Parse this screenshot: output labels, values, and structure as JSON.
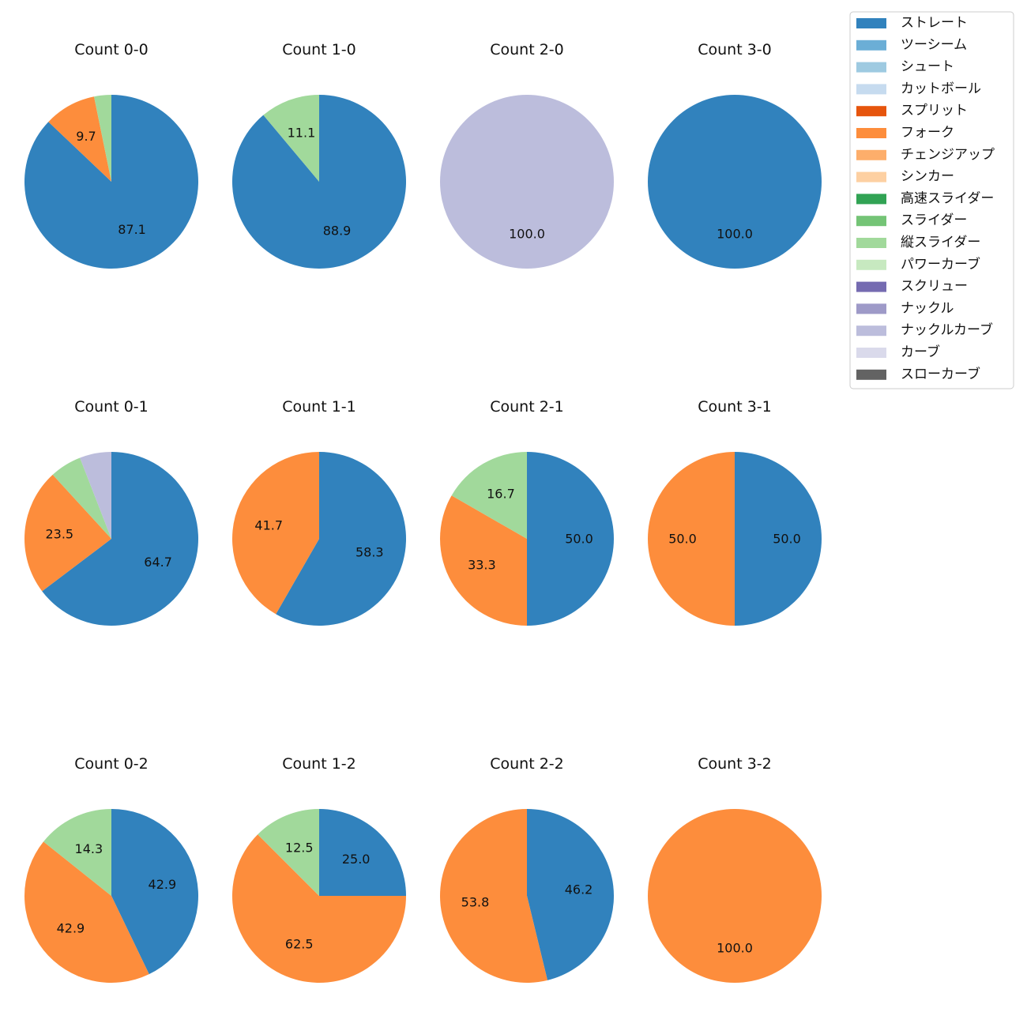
{
  "chart_data": {
    "type": "pie",
    "legend": {
      "placement": "top-right",
      "entries": [
        {
          "name": "ストレート",
          "color": "#3182bd"
        },
        {
          "name": "ツーシーム",
          "color": "#6baed6"
        },
        {
          "name": "シュート",
          "color": "#9ecae1"
        },
        {
          "name": "カットボール",
          "color": "#c6dbef"
        },
        {
          "name": "スプリット",
          "color": "#e6550d"
        },
        {
          "name": "フォーク",
          "color": "#fd8d3c"
        },
        {
          "name": "チェンジアップ",
          "color": "#fdae6b"
        },
        {
          "name": "シンカー",
          "color": "#fdd0a2"
        },
        {
          "name": "高速スライダー",
          "color": "#31a354"
        },
        {
          "name": "スライダー",
          "color": "#74c476"
        },
        {
          "name": "縦スライダー",
          "color": "#a1d99b"
        },
        {
          "name": "パワーカーブ",
          "color": "#c7e9c0"
        },
        {
          "name": "スクリュー",
          "color": "#756bb1"
        },
        {
          "name": "ナックル",
          "color": "#9e9ac8"
        },
        {
          "name": "ナックルカーブ",
          "color": "#bcbddc"
        },
        {
          "name": "カーブ",
          "color": "#dadaeb"
        },
        {
          "name": "スローカーブ",
          "color": "#636363"
        }
      ]
    },
    "pies": [
      {
        "title": "Count 0-0",
        "slices": [
          {
            "pitch": "ストレート",
            "value": 87.1,
            "label": "87.1"
          },
          {
            "pitch": "フォーク",
            "value": 9.7,
            "label": "9.7"
          },
          {
            "pitch": "縦スライダー",
            "value": 3.2,
            "label": ""
          }
        ]
      },
      {
        "title": "Count 1-0",
        "slices": [
          {
            "pitch": "ストレート",
            "value": 88.9,
            "label": "88.9"
          },
          {
            "pitch": "縦スライダー",
            "value": 11.1,
            "label": "11.1"
          }
        ]
      },
      {
        "title": "Count 2-0",
        "slices": [
          {
            "pitch": "ナックルカーブ",
            "value": 100.0,
            "label": "100.0"
          }
        ]
      },
      {
        "title": "Count 3-0",
        "slices": [
          {
            "pitch": "ストレート",
            "value": 100.0,
            "label": "100.0"
          }
        ]
      },
      {
        "title": "Count 0-1",
        "slices": [
          {
            "pitch": "ストレート",
            "value": 64.7,
            "label": "64.7"
          },
          {
            "pitch": "フォーク",
            "value": 23.5,
            "label": "23.5"
          },
          {
            "pitch": "縦スライダー",
            "value": 5.9,
            "label": ""
          },
          {
            "pitch": "ナックルカーブ",
            "value": 5.9,
            "label": ""
          }
        ]
      },
      {
        "title": "Count 1-1",
        "slices": [
          {
            "pitch": "ストレート",
            "value": 58.3,
            "label": "58.3"
          },
          {
            "pitch": "フォーク",
            "value": 41.7,
            "label": "41.7"
          }
        ]
      },
      {
        "title": "Count 2-1",
        "slices": [
          {
            "pitch": "ストレート",
            "value": 50.0,
            "label": "50.0"
          },
          {
            "pitch": "フォーク",
            "value": 33.3,
            "label": "33.3"
          },
          {
            "pitch": "縦スライダー",
            "value": 16.7,
            "label": "16.7"
          }
        ]
      },
      {
        "title": "Count 3-1",
        "slices": [
          {
            "pitch": "ストレート",
            "value": 50.0,
            "label": "50.0"
          },
          {
            "pitch": "フォーク",
            "value": 50.0,
            "label": "50.0"
          }
        ]
      },
      {
        "title": "Count 0-2",
        "slices": [
          {
            "pitch": "ストレート",
            "value": 42.9,
            "label": "42.9"
          },
          {
            "pitch": "フォーク",
            "value": 42.9,
            "label": "42.9"
          },
          {
            "pitch": "縦スライダー",
            "value": 14.3,
            "label": "14.3"
          }
        ]
      },
      {
        "title": "Count 1-2",
        "slices": [
          {
            "pitch": "ストレート",
            "value": 25.0,
            "label": "25.0"
          },
          {
            "pitch": "フォーク",
            "value": 62.5,
            "label": "62.5"
          },
          {
            "pitch": "縦スライダー",
            "value": 12.5,
            "label": "12.5"
          }
        ]
      },
      {
        "title": "Count 2-2",
        "slices": [
          {
            "pitch": "ストレート",
            "value": 46.2,
            "label": "46.2"
          },
          {
            "pitch": "フォーク",
            "value": 53.8,
            "label": "53.8"
          }
        ]
      },
      {
        "title": "Count 3-2",
        "slices": [
          {
            "pitch": "フォーク",
            "value": 100.0,
            "label": "100.0"
          }
        ]
      }
    ]
  }
}
